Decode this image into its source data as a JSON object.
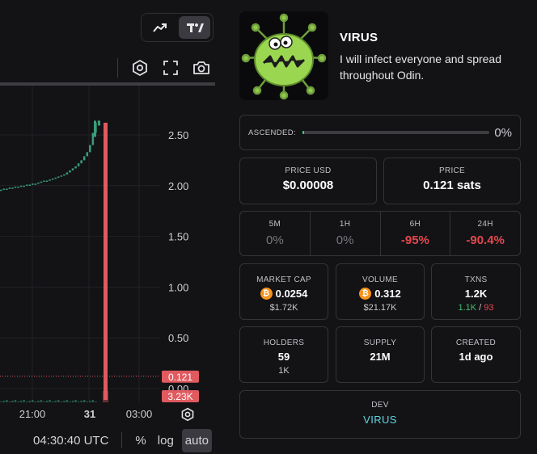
{
  "chart": {
    "y_ticks": [
      "2.50",
      "2.00",
      "1.50",
      "1.00",
      "0.50",
      "0.00"
    ],
    "x_ticks": [
      "21:00",
      "31",
      "03:00"
    ],
    "price_badge": "0.121",
    "volume_badge": "3.23K",
    "clock": "04:30:40 UTC",
    "scale_options": [
      "%",
      "log",
      "auto"
    ],
    "active_scale": "auto",
    "colors": {
      "up": "#3a9d7a",
      "down": "#e05a5f",
      "bg": "#131316"
    }
  },
  "chart_data": {
    "type": "candlestick",
    "ylim": [
      0,
      2.7
    ],
    "y_ticks": [
      0.0,
      0.5,
      1.0,
      1.5,
      2.0,
      2.5
    ],
    "x_tick_labels": [
      "21:00",
      "31",
      "03:00"
    ],
    "series": [
      {
        "name": "price",
        "values": [
          1.96,
          1.97,
          1.97,
          1.98,
          1.98,
          1.99,
          1.99,
          2.0,
          2.0,
          2.01,
          2.01,
          2.02,
          2.02,
          2.03,
          2.04,
          2.05,
          2.05,
          2.06,
          2.07,
          2.08,
          2.09,
          2.1,
          2.11,
          2.13,
          2.15,
          2.17,
          2.19,
          2.22,
          2.25,
          2.29,
          2.33,
          2.4,
          2.52,
          2.62,
          2.64,
          0.121
        ]
      }
    ],
    "last_price": 0.121,
    "last_volume": "3.23K"
  },
  "token": {
    "name": "VIRUS",
    "description": "I will infect everyone and spread throughout Odin."
  },
  "ascended": {
    "label": "ASCENDED:",
    "value": "0%",
    "progress": 0.01
  },
  "price_usd": {
    "label": "PRICE USD",
    "value": "$0.00008"
  },
  "price": {
    "label": "PRICE",
    "value": "0.121 sats"
  },
  "changes": [
    {
      "label": "5M",
      "value": "0%",
      "tone": "neutral"
    },
    {
      "label": "1H",
      "value": "0%",
      "tone": "neutral"
    },
    {
      "label": "6H",
      "value": "-95%",
      "tone": "neg"
    },
    {
      "label": "24H",
      "value": "-90.4%",
      "tone": "neg"
    }
  ],
  "market_cap": {
    "label": "MARKET CAP",
    "value": "0.0254",
    "sub": "$1.72K"
  },
  "volume": {
    "label": "VOLUME",
    "value": "0.312",
    "sub": "$21.17K"
  },
  "txns": {
    "label": "TXNS",
    "value": "1.2K",
    "buys": "1.1K",
    "sep": "/",
    "sells": "93"
  },
  "holders": {
    "label": "HOLDERS",
    "value": "59",
    "sub": "1K"
  },
  "supply": {
    "label": "SUPPLY",
    "value": "21M"
  },
  "created": {
    "label": "CREATED",
    "value": "1d ago"
  },
  "dev": {
    "label": "DEV",
    "value": "VIRUS"
  },
  "icons": {
    "line_chart": "trend-up-icon",
    "candles": "tradingview-logo-icon",
    "settings": "hexagon-settings-icon",
    "fullscreen": "fullscreen-icon",
    "screenshot": "camera-icon",
    "currency": "bitcoin-icon"
  }
}
